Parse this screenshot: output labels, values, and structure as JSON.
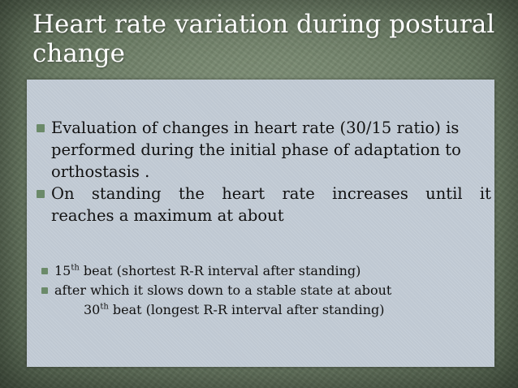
{
  "slide": {
    "title": "Heart rate variation during postural change",
    "bullets": [
      {
        "line1": "Evaluation of changes in heart rate (30/15 ratio) is",
        "line2": "performed during the initial phase of adaptation to",
        "line3": "orthostasis ."
      },
      {
        "line1": "On standing the heart rate increases until it",
        "line2": "reaches a maximum at about"
      }
    ],
    "subbullets": [
      {
        "num": "15",
        "sup": "th",
        "text": " beat (shortest R-R interval after standing)"
      },
      {
        "text": "after which it slows down to a stable state at about"
      },
      {
        "num": "30",
        "sup": "th",
        "text": " beat (longest R-R interval after standing)"
      }
    ]
  },
  "colors": {
    "background": "#6f8068",
    "content_box": "#c3ccd6",
    "bullet": "#6b8a69",
    "title_text": "#ffffff"
  }
}
